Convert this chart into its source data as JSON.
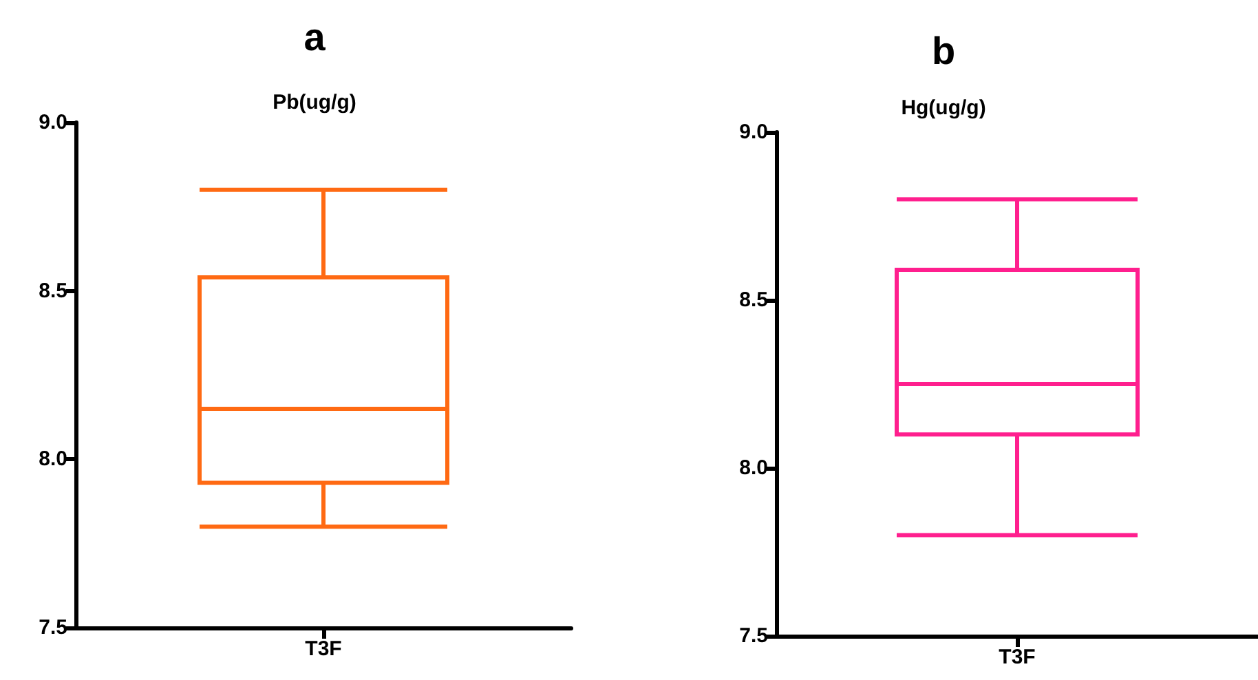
{
  "chart_data": [
    {
      "type": "box",
      "title": "a",
      "subtitle": "Pb(ug/g)",
      "categories": [
        "T3F"
      ],
      "series": [
        {
          "color": "#ff6a13",
          "boxes": [
            {
              "low": 7.8,
              "q1": 7.93,
              "median": 8.15,
              "q3": 8.54,
              "high": 8.8
            }
          ]
        }
      ],
      "ylim": [
        7.5,
        9.0
      ],
      "yticks": [
        {
          "value": 7.5,
          "label": "7.5"
        },
        {
          "value": 8,
          "label": "8.0"
        },
        {
          "value": 8.5,
          "label": "8.5"
        },
        {
          "value": 9,
          "label": "9.0"
        }
      ],
      "grid": false
    },
    {
      "type": "box",
      "title": "b",
      "subtitle": "Hg(ug/g)",
      "categories": [
        "T3F"
      ],
      "series": [
        {
          "color": "#ff1f8e",
          "boxes": [
            {
              "low": 7.8,
              "q1": 8.1,
              "median": 8.25,
              "q3": 8.59,
              "high": 8.8
            }
          ]
        }
      ],
      "ylim": [
        7.5,
        9.0
      ],
      "yticks": [
        {
          "value": 7.5,
          "label": "7.5"
        },
        {
          "value": 8,
          "label": "8.0"
        },
        {
          "value": 8.5,
          "label": "8.5"
        },
        {
          "value": 9,
          "label": "9.0"
        }
      ],
      "grid": false
    }
  ]
}
